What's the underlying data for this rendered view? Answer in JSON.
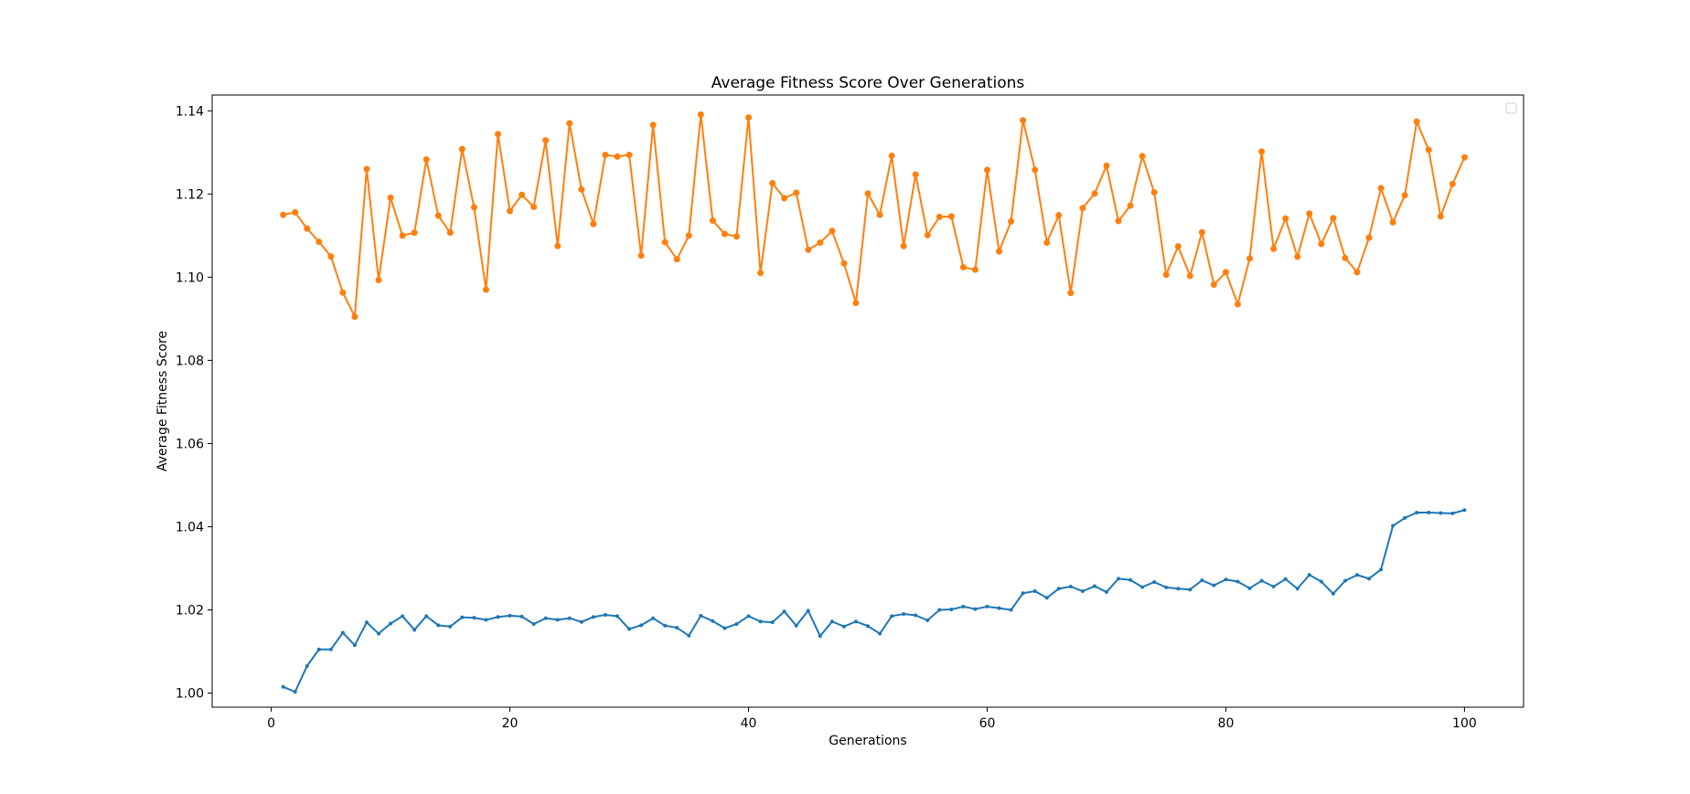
{
  "chart_data": {
    "type": "line",
    "title": "Average Fitness Score Over Generations",
    "xlabel": "Generations",
    "ylabel": "Average Fitness Score",
    "xlim": [
      -4.95,
      104.95
    ],
    "ylim": [
      0.9966,
      1.1438
    ],
    "xticks": [
      0,
      20,
      40,
      60,
      80,
      100
    ],
    "xtick_labels": [
      "0",
      "20",
      "40",
      "60",
      "80",
      "100"
    ],
    "yticks": [
      1.0,
      1.02,
      1.04,
      1.06,
      1.08,
      1.1,
      1.12,
      1.14
    ],
    "ytick_labels": [
      "1.00",
      "1.02",
      "1.04",
      "1.06",
      "1.08",
      "1.10",
      "1.12",
      "1.14"
    ],
    "grid": false,
    "legend": "top-right (empty)",
    "x": [
      1,
      2,
      3,
      4,
      5,
      6,
      7,
      8,
      9,
      10,
      11,
      12,
      13,
      14,
      15,
      16,
      17,
      18,
      19,
      20,
      21,
      22,
      23,
      24,
      25,
      26,
      27,
      28,
      29,
      30,
      31,
      32,
      33,
      34,
      35,
      36,
      37,
      38,
      39,
      40,
      41,
      42,
      43,
      44,
      45,
      46,
      47,
      48,
      49,
      50,
      51,
      52,
      53,
      54,
      55,
      56,
      57,
      58,
      59,
      60,
      61,
      62,
      63,
      64,
      65,
      66,
      67,
      68,
      69,
      70,
      71,
      72,
      73,
      74,
      75,
      76,
      77,
      78,
      79,
      80,
      81,
      82,
      83,
      84,
      85,
      86,
      87,
      88,
      89,
      90,
      91,
      92,
      93,
      94,
      95,
      96,
      97,
      98,
      99,
      100
    ],
    "series": [
      {
        "color": "#1f77b4",
        "marker_size": 3,
        "values": [
          1.0015,
          1.0003,
          1.0065,
          1.0105,
          1.0105,
          1.0145,
          1.0115,
          1.017,
          1.0143,
          1.0167,
          1.0185,
          1.0152,
          1.0185,
          1.0163,
          1.016,
          1.0182,
          1.0181,
          1.0176,
          1.0183,
          1.0186,
          1.0184,
          1.0166,
          1.018,
          1.0176,
          1.018,
          1.0171,
          1.0183,
          1.0188,
          1.0185,
          1.0154,
          1.0163,
          1.018,
          1.0162,
          1.0157,
          1.0138,
          1.0186,
          1.0173,
          1.0156,
          1.0166,
          1.0185,
          1.0172,
          1.017,
          1.0196,
          1.0162,
          1.0198,
          1.0137,
          1.0172,
          1.016,
          1.0172,
          1.0161,
          1.0143,
          1.0185,
          1.019,
          1.0187,
          1.0175,
          1.02,
          1.0201,
          1.0208,
          1.0202,
          1.0208,
          1.0204,
          1.02,
          1.024,
          1.0245,
          1.0229,
          1.0251,
          1.0256,
          1.0245,
          1.0257,
          1.0243,
          1.0275,
          1.0272,
          1.0255,
          1.0267,
          1.0254,
          1.0251,
          1.0249,
          1.0271,
          1.0259,
          1.0273,
          1.0268,
          1.0252,
          1.027,
          1.0256,
          1.0274,
          1.0251,
          1.0284,
          1.0268,
          1.0239,
          1.027,
          1.0284,
          1.0275,
          1.0297,
          1.0402,
          1.0421,
          1.0434,
          1.0434,
          1.0433,
          1.0432,
          1.044
        ]
      },
      {
        "color": "#ff7f0e",
        "marker_size": 6,
        "values": [
          1.115,
          1.1156,
          1.1117,
          1.1085,
          1.105,
          1.0963,
          1.0905,
          1.126,
          1.0993,
          1.1191,
          1.11,
          1.1107,
          1.1283,
          1.1148,
          1.1107,
          1.1308,
          1.1168,
          1.097,
          1.1344,
          1.1159,
          1.1198,
          1.1169,
          1.1329,
          1.1075,
          1.137,
          1.1211,
          1.1128,
          1.1294,
          1.129,
          1.1294,
          1.1052,
          1.1366,
          1.1084,
          1.1043,
          1.11,
          1.1391,
          1.1136,
          1.1104,
          1.1098,
          1.1384,
          1.101,
          1.1226,
          1.119,
          1.1203,
          1.1066,
          1.1083,
          1.1111,
          1.1033,
          1.0938,
          1.1201,
          1.115,
          1.1292,
          1.1075,
          1.1247,
          1.1101,
          1.1145,
          1.1146,
          1.1024,
          1.1018,
          1.1258,
          1.1062,
          1.1134,
          1.1377,
          1.1258,
          1.1083,
          1.1149,
          1.0962,
          1.1166,
          1.1201,
          1.1268,
          1.1135,
          1.1172,
          1.1291,
          1.1204,
          1.1006,
          1.1074,
          1.1003,
          1.1108,
          1.0982,
          1.1012,
          1.0935,
          1.1045,
          1.1302,
          1.1068,
          1.1141,
          1.1049,
          1.1153,
          1.108,
          1.1142,
          1.1046,
          1.1012,
          1.1095,
          1.1214,
          1.1132,
          1.1197,
          1.1374,
          1.1306,
          1.1146,
          1.1224,
          1.1288
        ]
      }
    ]
  }
}
